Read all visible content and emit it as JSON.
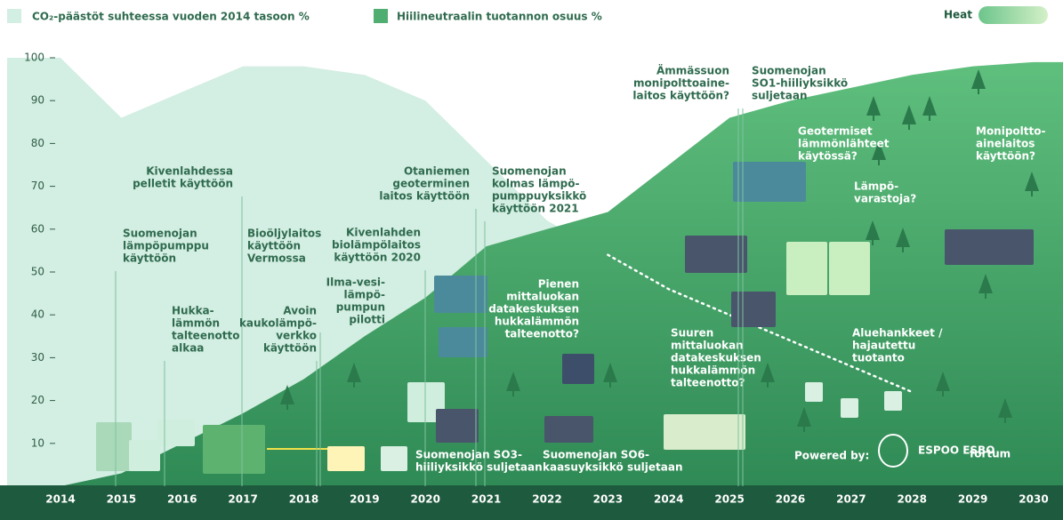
{
  "chart_data": {
    "type": "area",
    "legend": [
      "CO₂-päästöt suhteessa vuoden 2014 tasoon %",
      "Hiilineutraalin tuotannon osuus %"
    ],
    "brand": "Heat",
    "powered_by": "Powered by:",
    "logos": [
      "ESPOO ESBO",
      "fortum"
    ],
    "x": [
      2014,
      2015,
      2016,
      2017,
      2018,
      2019,
      2020,
      2021,
      2022,
      2023,
      2024,
      2025,
      2026,
      2027,
      2028,
      2029,
      2030
    ],
    "xlim": [
      2014,
      2030
    ],
    "xticks": [
      2014,
      2015,
      2016,
      2017,
      2018,
      2019,
      2020,
      2021,
      2022,
      2023,
      2024,
      2025,
      2026,
      2027,
      2028,
      2029,
      2030
    ],
    "ylim": [
      0,
      100
    ],
    "yticks": [
      10,
      20,
      30,
      40,
      50,
      60,
      70,
      80,
      90,
      100
    ],
    "projection_start": 2023,
    "series": [
      {
        "name": "CO₂-päästöt suhteessa vuoden 2014 tasoon %",
        "color": "#d3eee2",
        "values": [
          100,
          86,
          92,
          98,
          98,
          96,
          90,
          76,
          62,
          54,
          46,
          40,
          34,
          28,
          22,
          null,
          null
        ]
      },
      {
        "name": "Hiilineutraalin tuotannon osuus %",
        "color": "#4fae70",
        "values": [
          0,
          3,
          10,
          17,
          25,
          35,
          44,
          56,
          60,
          64,
          75,
          86,
          90,
          93,
          96,
          98,
          99
        ]
      }
    ],
    "annotations": [
      [
        "Suomenojan",
        "lämpöpumppu",
        "käyttöön"
      ],
      [
        "Kivenlahdessa",
        "pelletit käyttöön"
      ],
      [
        "Hukka-",
        "lämmön",
        "talteenotto",
        "alkaa"
      ],
      [
        "Bioöljylaitos",
        "käyttöön",
        "Vermossa"
      ],
      [
        "Avoin",
        "kaukolämpö-",
        "verkko",
        "käyttöön"
      ],
      [
        "Ilma-vesi-",
        "lämpö-",
        "pumpun",
        "pilotti"
      ],
      [
        "Kivenlahden",
        "biolämpölaitos",
        "käyttöön 2020"
      ],
      [
        "Otaniemen",
        "geoterminen",
        "laitos käyttöön"
      ],
      [
        "Suomenojan",
        "kolmas lämpö-",
        "pumppuyksikkö",
        "käyttöön 2021"
      ],
      [
        "Pienen",
        "mittaluokan",
        "datakeskuksen",
        "hukkalämmön",
        "talteenotto?"
      ],
      [
        "Suomenojan SO3-",
        "hiiliyksikkö suljetaan"
      ],
      [
        "Suomenojan SO6-",
        "kaasuyksikkö suljetaan"
      ],
      [
        "Suuren",
        "mittaluokan",
        "datakeskuksen",
        "hukkalämmön",
        "talteenotto?"
      ],
      [
        "Ämmässuon",
        "monipolttoaine-",
        "laitos käyttöön?"
      ],
      [
        "Suomenojan",
        "SO1-hiiliyksikkö",
        "suljetaan"
      ],
      [
        "Geotermiset",
        "lämmönlähteet",
        "käytössä?"
      ],
      [
        "Lämpö-",
        "varastoja?"
      ],
      [
        "Monipoltto-",
        "ainelaitos",
        "käyttöön?"
      ],
      [
        "Aluehankkeet /",
        "hajautettu",
        "tuotanto"
      ]
    ]
  }
}
